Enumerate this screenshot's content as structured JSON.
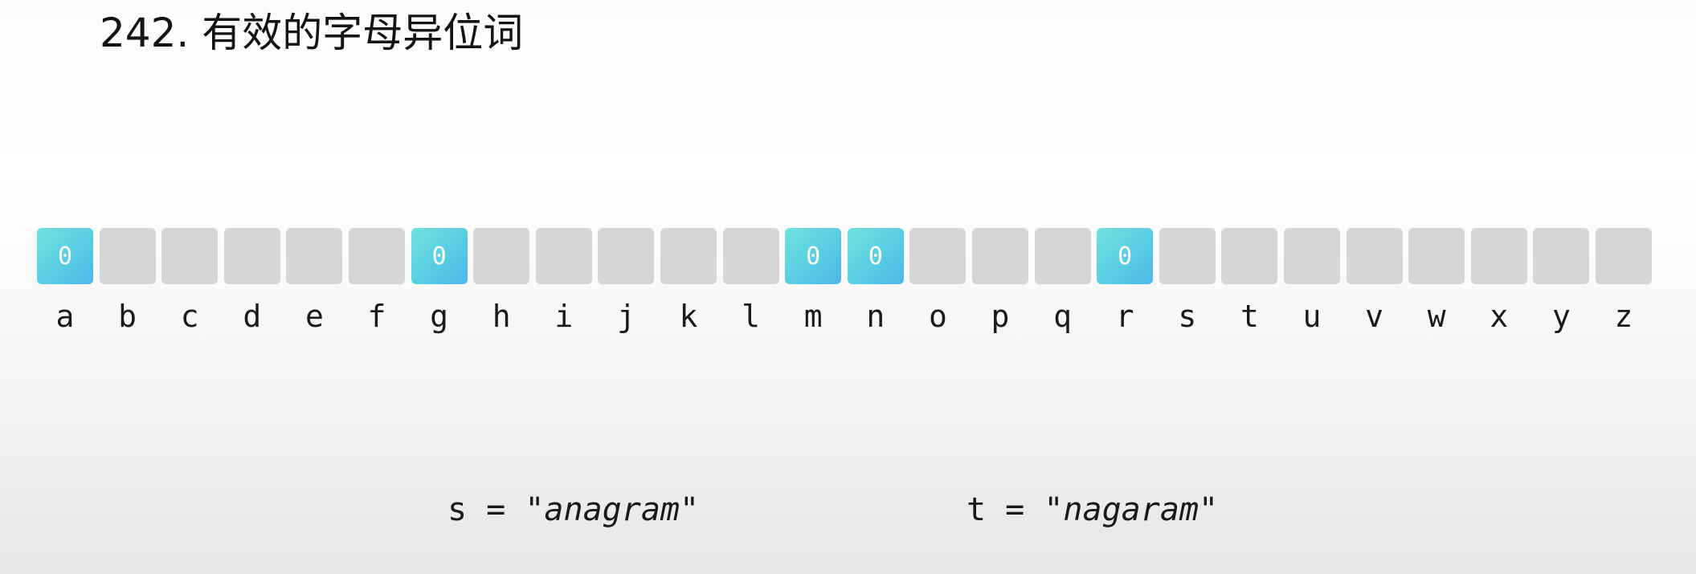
{
  "title": "242. 有效的字母异位词",
  "cells": [
    {
      "letter": "a",
      "value": "0",
      "active": true
    },
    {
      "letter": "b",
      "value": "",
      "active": false
    },
    {
      "letter": "c",
      "value": "",
      "active": false
    },
    {
      "letter": "d",
      "value": "",
      "active": false
    },
    {
      "letter": "e",
      "value": "",
      "active": false
    },
    {
      "letter": "f",
      "value": "",
      "active": false
    },
    {
      "letter": "g",
      "value": "0",
      "active": true
    },
    {
      "letter": "h",
      "value": "",
      "active": false
    },
    {
      "letter": "i",
      "value": "",
      "active": false
    },
    {
      "letter": "j",
      "value": "",
      "active": false
    },
    {
      "letter": "k",
      "value": "",
      "active": false
    },
    {
      "letter": "l",
      "value": "",
      "active": false
    },
    {
      "letter": "m",
      "value": "0",
      "active": true
    },
    {
      "letter": "n",
      "value": "0",
      "active": true
    },
    {
      "letter": "o",
      "value": "",
      "active": false
    },
    {
      "letter": "p",
      "value": "",
      "active": false
    },
    {
      "letter": "q",
      "value": "",
      "active": false
    },
    {
      "letter": "r",
      "value": "0",
      "active": true
    },
    {
      "letter": "s",
      "value": "",
      "active": false
    },
    {
      "letter": "t",
      "value": "",
      "active": false
    },
    {
      "letter": "u",
      "value": "",
      "active": false
    },
    {
      "letter": "v",
      "value": "",
      "active": false
    },
    {
      "letter": "w",
      "value": "",
      "active": false
    },
    {
      "letter": "x",
      "value": "",
      "active": false
    },
    {
      "letter": "y",
      "value": "",
      "active": false
    },
    {
      "letter": "z",
      "value": "",
      "active": false
    }
  ],
  "strings": {
    "s": {
      "prefix": "s = ",
      "value": "\"anagram\""
    },
    "t": {
      "prefix": "t = ",
      "value": "\"nagaram\""
    }
  },
  "colors": {
    "active_box": "#5fd6e2",
    "inactive_box": "#d6d5d8"
  }
}
